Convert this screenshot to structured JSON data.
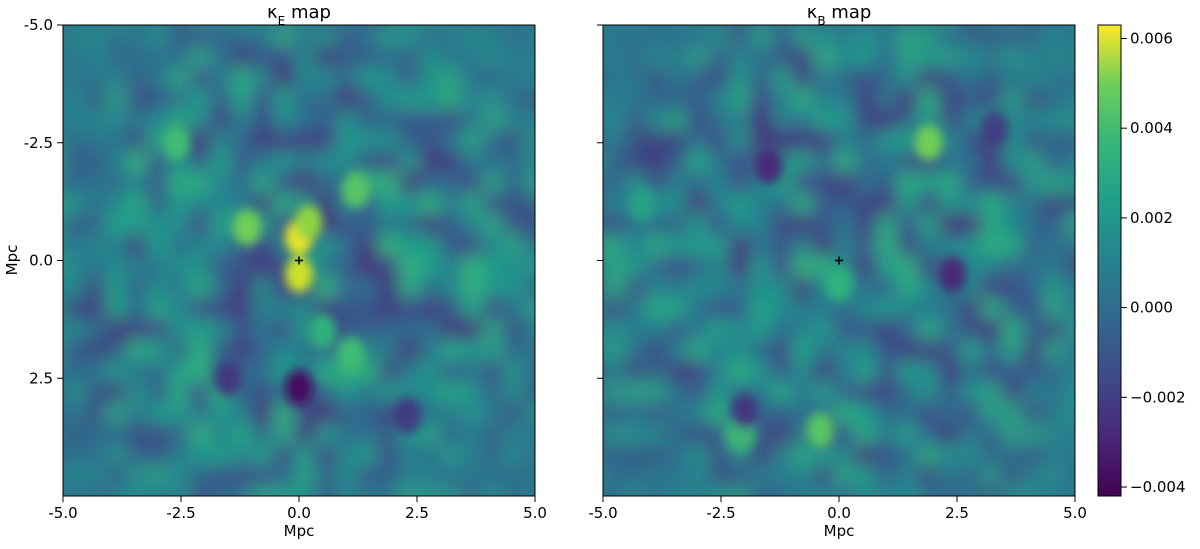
{
  "chart_data": [
    {
      "type": "heatmap",
      "title_symbol": "κ",
      "title_subscript": "E",
      "title_suffix": " map",
      "xlabel": "Mpc",
      "ylabel": "Mpc",
      "xlim": [
        -5.0,
        5.0
      ],
      "ylim": [
        5.0,
        -5.0
      ],
      "x_ticks": [
        -5.0,
        -2.5,
        0.0,
        2.5,
        5.0
      ],
      "x_tick_labels": [
        "-5.0",
        "-2.5",
        "0.0",
        "2.5",
        "5.0"
      ],
      "y_ticks": [
        -5.0,
        -2.5,
        0.0,
        2.5
      ],
      "y_tick_labels": [
        "-5.0",
        "-2.5",
        "0.0",
        "2.5"
      ],
      "center_marker": [
        0.0,
        0.0
      ],
      "features": [
        {
          "x": 0.0,
          "y": -0.5,
          "value": 0.006
        },
        {
          "x": 0.0,
          "y": 0.3,
          "value": 0.0055
        },
        {
          "x": 0.2,
          "y": -0.8,
          "value": 0.0045
        },
        {
          "x": -1.1,
          "y": -0.7,
          "value": 0.004
        },
        {
          "x": 1.2,
          "y": -1.5,
          "value": 0.0035
        },
        {
          "x": 0.5,
          "y": 1.5,
          "value": 0.0025
        },
        {
          "x": 1.1,
          "y": 2.0,
          "value": 0.003
        },
        {
          "x": 0.0,
          "y": 2.7,
          "value": -0.0038
        },
        {
          "x": -1.5,
          "y": 2.5,
          "value": -0.0025
        },
        {
          "x": 2.3,
          "y": 3.3,
          "value": -0.0025
        },
        {
          "x": -2.6,
          "y": -2.5,
          "value": 0.003
        }
      ]
    },
    {
      "type": "heatmap",
      "title_symbol": "κ",
      "title_subscript": "B",
      "title_suffix": " map",
      "xlabel": "Mpc",
      "ylabel": "",
      "xlim": [
        -5.0,
        5.0
      ],
      "ylim": [
        5.0,
        -5.0
      ],
      "x_ticks": [
        -5.0,
        -2.5,
        0.0,
        2.5,
        5.0
      ],
      "x_tick_labels": [
        "-5.0",
        "-2.5",
        "0.0",
        "2.5",
        "5.0"
      ],
      "y_ticks": [
        -5.0,
        -2.5,
        0.0,
        2.5
      ],
      "center_marker": [
        0.0,
        0.0
      ],
      "features": [
        {
          "x": 1.9,
          "y": -2.5,
          "value": 0.004
        },
        {
          "x": -2.1,
          "y": 3.7,
          "value": 0.003
        },
        {
          "x": -0.4,
          "y": 3.6,
          "value": 0.0035
        },
        {
          "x": -1.5,
          "y": -2.0,
          "value": -0.003
        },
        {
          "x": 2.4,
          "y": 0.3,
          "value": -0.003
        },
        {
          "x": 3.3,
          "y": -2.8,
          "value": -0.0025
        },
        {
          "x": -2.0,
          "y": 3.2,
          "value": -0.0025
        },
        {
          "x": 0.0,
          "y": 0.5,
          "value": 0.0025
        },
        {
          "x": -4.2,
          "y": -1.2,
          "value": 0.002
        }
      ]
    }
  ],
  "colorbar": {
    "min": -0.0042,
    "max": 0.0063,
    "ticks": [
      -0.004,
      -0.002,
      0.0,
      0.002,
      0.004,
      0.006
    ],
    "tick_labels": [
      "−0.004",
      "−0.002",
      "0.000",
      "0.002",
      "0.004",
      "0.006"
    ],
    "colormap": "viridis"
  },
  "colors": {
    "viridis_low": "#440154",
    "viridis_mid": "#21918c",
    "viridis_high": "#fde725",
    "zero_level": "#29788e"
  }
}
